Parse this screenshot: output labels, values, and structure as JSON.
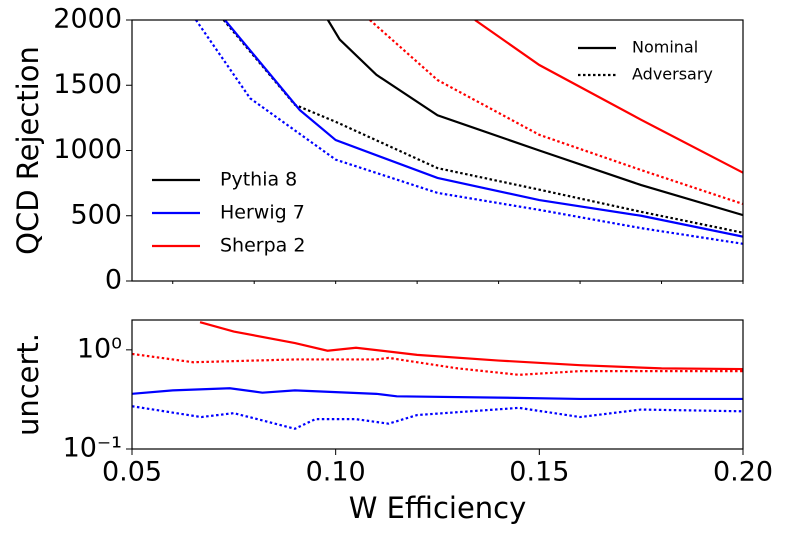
{
  "chart_data": [
    {
      "type": "line",
      "ylabel": "QCD Rejection",
      "xlim": [
        0.05,
        0.2
      ],
      "ylim": [
        0,
        2000
      ],
      "xticks": [
        0.06,
        0.08,
        0.1,
        0.12,
        0.14,
        0.16,
        0.18,
        0.2
      ],
      "yticks": [
        0,
        500,
        1000,
        1500,
        2000
      ],
      "legend": [
        {
          "name": "Pythia 8",
          "color": "#000000"
        },
        {
          "name": "Herwig 7",
          "color": "#0000ff"
        },
        {
          "name": "Sherpa 2",
          "color": "#ff0000"
        }
      ],
      "style_legend": [
        {
          "name": "Nominal",
          "dash": "solid"
        },
        {
          "name": "Adversary",
          "dash": "dotted"
        }
      ],
      "series": [
        {
          "color": "#000000",
          "dash": "solid",
          "x": [
            0.0981,
            0.101,
            0.11,
            0.125,
            0.15,
            0.175,
            0.2
          ],
          "values": [
            2000,
            1850,
            1580,
            1270,
            1000,
            735,
            505
          ]
        },
        {
          "color": "#000000",
          "dash": "dotted",
          "x": [
            0.0725,
            0.09,
            0.1,
            0.125,
            0.15,
            0.175,
            0.2
          ],
          "values": [
            2000,
            1350,
            1220,
            865,
            700,
            530,
            370
          ]
        },
        {
          "color": "#0000ff",
          "dash": "solid",
          "x": [
            0.0728,
            0.0912,
            0.1,
            0.125,
            0.15,
            0.175,
            0.2
          ],
          "values": [
            2000,
            1310,
            1080,
            790,
            620,
            500,
            340
          ]
        },
        {
          "color": "#0000ff",
          "dash": "dotted",
          "x": [
            0.0657,
            0.079,
            0.1,
            0.125,
            0.15,
            0.175,
            0.2
          ],
          "values": [
            2000,
            1400,
            930,
            675,
            545,
            405,
            285
          ]
        },
        {
          "color": "#ff0000",
          "dash": "solid",
          "x": [
            0.1342,
            0.15,
            0.175,
            0.2
          ],
          "values": [
            2000,
            1655,
            1235,
            830
          ]
        },
        {
          "color": "#ff0000",
          "dash": "dotted",
          "x": [
            0.1084,
            0.125,
            0.15,
            0.175,
            0.2
          ],
          "values": [
            2000,
            1540,
            1120,
            850,
            590
          ]
        }
      ]
    },
    {
      "type": "line",
      "log_y": true,
      "ylabel": "uncert.",
      "xlabel": "W Efficiency",
      "xlim": [
        0.05,
        0.2
      ],
      "ylim": [
        0.1,
        2
      ],
      "xticks": [
        0.05,
        {
          "value": 0.1,
          "label": "0.10"
        },
        0.15,
        {
          "value": 0.2,
          "label": "0.20"
        }
      ],
      "yticks": [
        {
          "value": 0.1,
          "label": "10⁻¹"
        },
        {
          "value": 1,
          "label": "10⁰"
        }
      ],
      "series": [
        {
          "color": "#ff0000",
          "dash": "solid",
          "x": [
            0.0667,
            0.075,
            0.09,
            0.098,
            0.105,
            0.12,
            0.14,
            0.16,
            0.18,
            0.2
          ],
          "values": [
            1.9,
            1.53,
            1.17,
            0.98,
            1.05,
            0.89,
            0.78,
            0.7,
            0.65,
            0.64
          ]
        },
        {
          "color": "#ff0000",
          "dash": "dotted",
          "x": [
            0.05,
            0.065,
            0.09,
            0.11,
            0.113,
            0.13,
            0.145,
            0.16,
            0.2
          ],
          "values": [
            0.91,
            0.75,
            0.8,
            0.8,
            0.83,
            0.65,
            0.56,
            0.61,
            0.61
          ]
        },
        {
          "color": "#0000ff",
          "dash": "solid",
          "x": [
            0.05,
            0.06,
            0.074,
            0.082,
            0.09,
            0.11,
            0.115,
            0.14,
            0.16,
            0.2
          ],
          "values": [
            0.36,
            0.39,
            0.41,
            0.37,
            0.39,
            0.36,
            0.34,
            0.33,
            0.32,
            0.32
          ]
        },
        {
          "color": "#0000ff",
          "dash": "dotted",
          "x": [
            0.05,
            0.067,
            0.075,
            0.09,
            0.095,
            0.105,
            0.113,
            0.12,
            0.145,
            0.16,
            0.175,
            0.2
          ],
          "values": [
            0.27,
            0.21,
            0.23,
            0.16,
            0.2,
            0.2,
            0.18,
            0.22,
            0.26,
            0.21,
            0.25,
            0.24
          ]
        }
      ]
    }
  ]
}
